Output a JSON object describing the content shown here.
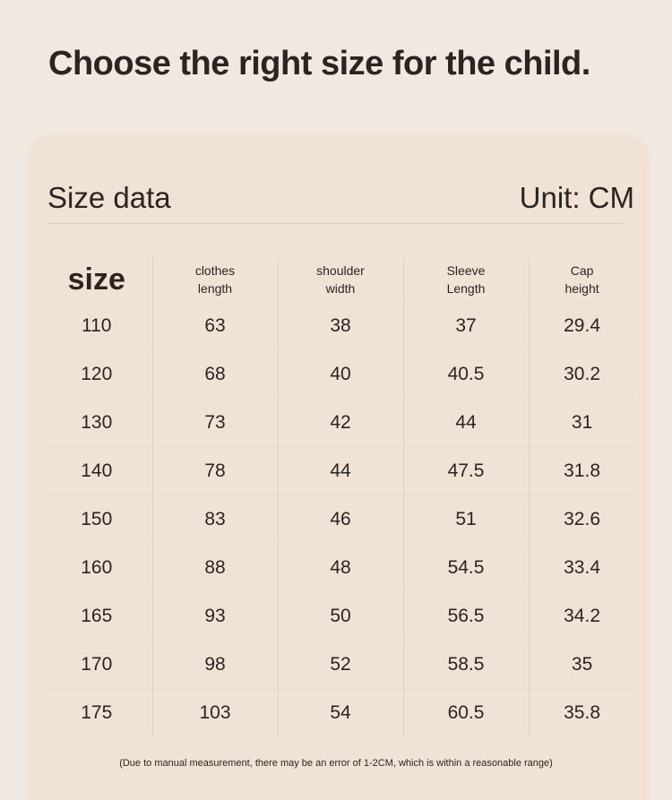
{
  "header": {
    "title": "Choose the right size for the child."
  },
  "card": {
    "heading": "Size data",
    "unit": "Unit: CM"
  },
  "table": {
    "columns": [
      "size",
      "clothes length",
      "shoulder width",
      "Sleeve Length",
      "Cap height"
    ],
    "rows": [
      [
        110,
        63,
        38,
        37,
        29.4
      ],
      [
        120,
        68,
        40,
        40.5,
        30.2
      ],
      [
        130,
        73,
        42,
        44,
        31
      ],
      [
        140,
        78,
        44,
        47.5,
        31.8
      ],
      [
        150,
        83,
        46,
        51,
        32.6
      ],
      [
        160,
        88,
        48,
        54.5,
        33.4
      ],
      [
        165,
        93,
        50,
        56.5,
        34.2
      ],
      [
        170,
        98,
        52,
        58.5,
        35
      ],
      [
        175,
        103,
        54,
        60.5,
        35.8
      ]
    ]
  },
  "note": "(Due to manual measurement, there may be an error of 1-2CM, which is within a reasonable range)"
}
